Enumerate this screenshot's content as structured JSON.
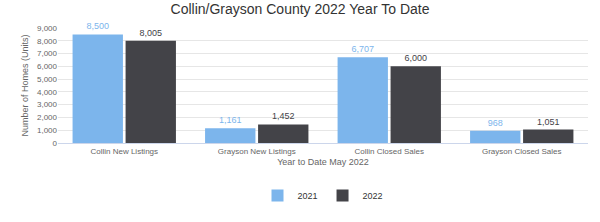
{
  "chart_data": {
    "type": "bar",
    "title": "Collin/Grayson County 2022 Year To Date",
    "x_label": "Year to Date May 2022",
    "y_label": "Number of Homes (Units)",
    "categories": [
      "Collin New Listings",
      "Grayson New Listings",
      "Collin Closed Sales",
      "Grayson Closed Sales"
    ],
    "series": [
      {
        "name": "2021",
        "color": "#7cb5ec",
        "values": [
          8500,
          1161,
          6707,
          968
        ],
        "value_labels": [
          "8,500",
          "1,161",
          "6,707",
          "968"
        ]
      },
      {
        "name": "2022",
        "color": "#434348",
        "values": [
          8005,
          1452,
          6000,
          1051
        ],
        "value_labels": [
          "8,005",
          "1,452",
          "6,000",
          "1,051"
        ]
      }
    ],
    "ylim": [
      0,
      9000
    ],
    "yticks": [
      0,
      {
        "value": 1000,
        "label": "1,000"
      },
      {
        "value": 2000,
        "label": "2,000"
      },
      {
        "value": 3000,
        "label": "3,000"
      },
      {
        "value": 4000,
        "label": "4,000"
      },
      {
        "value": 5000,
        "label": "5,000"
      },
      {
        "value": 6000,
        "label": "6,000"
      },
      {
        "value": 7000,
        "label": "7,000"
      },
      {
        "value": 8000,
        "label": "8,000"
      },
      {
        "value": 9000,
        "label": "9,000"
      }
    ],
    "grid": true,
    "legend": "bottom",
    "data_labels": true
  }
}
